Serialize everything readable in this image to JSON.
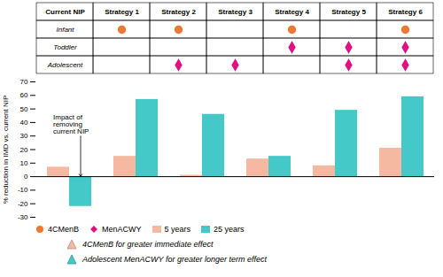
{
  "chart_data": [
    {
      "type": "table",
      "columns": [
        "Current NIP",
        "Strategy 1",
        "Strategy 2",
        "Strategy 3",
        "Strategy 4",
        "Strategy 5",
        "Strategy 6"
      ],
      "rows": [
        {
          "name": "Infant",
          "marker": "4CMenB",
          "values": [
            null,
            true,
            true,
            false,
            true,
            false,
            true
          ]
        },
        {
          "name": "Toddler",
          "marker": "MenACWY",
          "values": [
            null,
            false,
            false,
            false,
            true,
            true,
            true
          ]
        },
        {
          "name": "Adolescent",
          "marker": "MenACWY",
          "values": [
            null,
            false,
            true,
            true,
            false,
            true,
            true
          ]
        }
      ],
      "markers": [
        {
          "name": "4CMenB",
          "marker": "circle",
          "color": "#F07830"
        },
        {
          "name": "MenACWY",
          "marker": "diamond",
          "color": "#E01080"
        }
      ]
    },
    {
      "type": "bar",
      "ylabel": "% reduction in IMD vs. current NIP",
      "categories": [
        null,
        null,
        null,
        null,
        null,
        null
      ],
      "series": [
        {
          "name": "5 years",
          "color": "#F5B8A0",
          "values": [
            7,
            15,
            1,
            13,
            8,
            21
          ]
        },
        {
          "name": "25 years",
          "color": "#45C8C8",
          "values": [
            -22,
            57,
            46,
            15,
            49,
            59
          ]
        }
      ],
      "ylim": [
        -30,
        70
      ],
      "yticks": [
        -30,
        -20,
        -10,
        0,
        10,
        20,
        30,
        40,
        50,
        60,
        70
      ],
      "tick_labels": "y",
      "legend": "bottom",
      "annotation": "Impact of\nremoving\ncurrent NIP",
      "notes": [
        {
          "text": "4CMenB for greater immediate effect",
          "color": "#F5B8A0"
        },
        {
          "text": "Adolescent MenACWY for greater longer term effect",
          "color": "#45C8C8"
        }
      ]
    }
  ]
}
